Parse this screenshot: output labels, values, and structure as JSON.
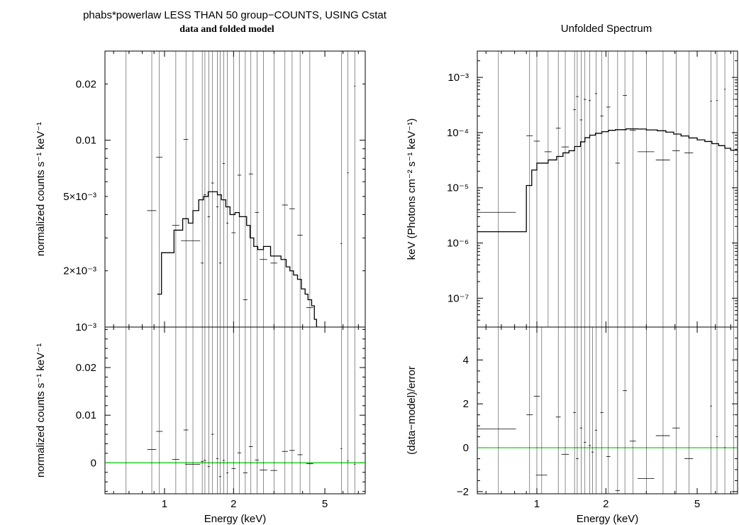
{
  "header": {
    "left_title": "phabs*powerlaw LESS THAN 50 group−COUNTS, USING Cstat",
    "left_subtitle": "data and folded model",
    "right_title": "Unfolded Spectrum"
  },
  "colors": {
    "axis": "#000000",
    "data": "#000000",
    "model": "#000000",
    "zero_line": "#00c800"
  },
  "chart_data": [
    {
      "id": "folded",
      "type": "scatter",
      "title": "data and folded model",
      "xlabel": "",
      "ylabel": "normalized counts s⁻¹ keV⁻¹",
      "xscale": "log",
      "yscale": "log",
      "xlim": [
        0.55,
        7.5
      ],
      "ylim": [
        0.001,
        0.03
      ],
      "yticks": [
        {
          "v": 0.02,
          "label": "0.02"
        },
        {
          "v": 0.01,
          "label": "0.01"
        },
        {
          "v": 0.005,
          "label": "5×10⁻³"
        },
        {
          "v": 0.002,
          "label": "2×10⁻³"
        },
        {
          "v": 0.001,
          "label": "10⁻³"
        }
      ],
      "points": [
        [
          0.68,
          0,
          0,
          0.0009,
          0.0016
        ],
        [
          0.88,
          0.04,
          0.04,
          0.0042,
          0.0042
        ],
        [
          0.95,
          0.03,
          0.03,
          0.0081,
          0.0081
        ],
        [
          1.12,
          0.04,
          0.04,
          0.0035,
          0.0035
        ],
        [
          1.24,
          0.03,
          0.03,
          0.0101,
          0.0101
        ],
        [
          1.33,
          0.15,
          0.1,
          0.0029,
          0.0029
        ],
        [
          1.46,
          0.02,
          0.02,
          0.0022,
          0.003
        ],
        [
          1.5,
          0.02,
          0.02,
          0.0051,
          0.0051
        ],
        [
          1.56,
          0.02,
          0.02,
          0.0039,
          0.0039
        ],
        [
          1.62,
          0.02,
          0.02,
          0.0059,
          0.0059
        ],
        [
          1.7,
          0.02,
          0.02,
          0.0044,
          0.0044
        ],
        [
          1.75,
          0.02,
          0.02,
          0.0022,
          0.0022
        ],
        [
          1.81,
          0.02,
          0.02,
          0.0075,
          0.0075
        ],
        [
          1.88,
          0.02,
          0.02,
          0.0036,
          0.0036
        ],
        [
          2.0,
          0.04,
          0.04,
          0.0032,
          0.0032
        ],
        [
          2.12,
          0.04,
          0.04,
          0.0065,
          0.0065
        ],
        [
          2.25,
          0.05,
          0.05,
          0.0014,
          0.0014
        ],
        [
          2.38,
          0.05,
          0.05,
          0.0066,
          0.0066
        ],
        [
          2.53,
          0.05,
          0.05,
          0.0041,
          0.0041
        ],
        [
          2.7,
          0.1,
          0.1,
          0.0023,
          0.0023
        ],
        [
          3.0,
          0.1,
          0.1,
          0.0022,
          0.0022
        ],
        [
          3.35,
          0.1,
          0.1,
          0.0045,
          0.0045
        ],
        [
          3.6,
          0.1,
          0.1,
          0.0043,
          0.0043
        ],
        [
          3.9,
          0.1,
          0.1,
          0.0031,
          0.0031
        ],
        [
          4.3,
          0.15,
          0.15,
          0.00127,
          0.00127
        ],
        [
          5.9,
          0.05,
          0.05,
          0.0028,
          0.0028
        ],
        [
          6.3,
          0.05,
          0.05,
          0.0067,
          0.0067
        ],
        [
          6.75,
          0.05,
          0.05,
          0.0195,
          0.0195
        ]
      ],
      "model_step": [
        [
          0.93,
          0.0015
        ],
        [
          0.97,
          0.0025
        ],
        [
          1.1,
          0.0033
        ],
        [
          1.2,
          0.0038
        ],
        [
          1.27,
          0.0036
        ],
        [
          1.33,
          0.0042
        ],
        [
          1.41,
          0.0048
        ],
        [
          1.48,
          0.005
        ],
        [
          1.55,
          0.0053
        ],
        [
          1.63,
          0.0053
        ],
        [
          1.7,
          0.0051
        ],
        [
          1.77,
          0.0048
        ],
        [
          1.85,
          0.0044
        ],
        [
          1.93,
          0.004
        ],
        [
          2.03,
          0.0041
        ],
        [
          2.12,
          0.0039
        ],
        [
          2.2,
          0.0039
        ],
        [
          2.28,
          0.0035
        ],
        [
          2.36,
          0.003
        ],
        [
          2.45,
          0.0027
        ],
        [
          2.55,
          0.0026
        ],
        [
          2.7,
          0.0027
        ],
        [
          2.9,
          0.0024
        ],
        [
          3.22,
          0.0023
        ],
        [
          3.39,
          0.0021
        ],
        [
          3.52,
          0.002
        ],
        [
          3.65,
          0.0019
        ],
        [
          3.8,
          0.0018
        ],
        [
          3.95,
          0.0016
        ],
        [
          4.1,
          0.0015
        ],
        [
          4.22,
          0.0014
        ],
        [
          4.38,
          0.0013
        ],
        [
          4.5,
          0.0011
        ],
        [
          4.6,
          0.001
        ]
      ]
    },
    {
      "id": "unfolded",
      "type": "scatter",
      "title": "Unfolded Spectrum",
      "xlabel": "",
      "ylabel": "keV (Photons cm⁻² s⁻¹ keV⁻¹)",
      "xscale": "log",
      "yscale": "log",
      "xlim": [
        0.55,
        7.5
      ],
      "ylim": [
        3e-08,
        0.003
      ],
      "yticks": [
        {
          "v": 0.001,
          "label": "10⁻³"
        },
        {
          "v": 0.0001,
          "label": "10⁻⁴"
        },
        {
          "v": 1e-05,
          "label": "10⁻⁵"
        },
        {
          "v": 1e-06,
          "label": "10⁻⁶"
        },
        {
          "v": 1e-07,
          "label": "10⁻⁷"
        }
      ],
      "points": [
        [
          0.68,
          0.13,
          0.13,
          3.6e-06,
          3.6e-06
        ],
        [
          0.93,
          0.03,
          0.03,
          8.8e-05,
          8.8e-05
        ],
        [
          1.0,
          0.03,
          0.03,
          7e-05,
          7e-05
        ],
        [
          1.12,
          0.04,
          0.04,
          4.5e-05,
          4.5e-05
        ],
        [
          1.24,
          0.03,
          0.03,
          0.00012,
          0.00012
        ],
        [
          1.33,
          0.05,
          0.05,
          5.5e-05,
          5.5e-05
        ],
        [
          1.46,
          0.02,
          0.02,
          0.00026,
          0.00026
        ],
        [
          1.5,
          0.02,
          0.02,
          0.00045,
          0.00045
        ],
        [
          1.56,
          0.02,
          0.02,
          0.00017,
          0.00017
        ],
        [
          1.62,
          0.02,
          0.02,
          0.0004,
          0.0004
        ],
        [
          1.7,
          0.02,
          0.02,
          0.00038,
          0.00038
        ],
        [
          1.81,
          0.02,
          0.02,
          0.00051,
          0.00051
        ],
        [
          1.92,
          0.03,
          0.03,
          0.0002,
          0.0002
        ],
        [
          2.05,
          0.04,
          0.04,
          0.00029,
          0.00029
        ],
        [
          2.25,
          0.05,
          0.05,
          2.8e-05,
          2.8e-05
        ],
        [
          2.42,
          0.05,
          0.05,
          0.00047,
          0.00047
        ],
        [
          2.62,
          0.08,
          0.08,
          0.00011,
          0.00011
        ],
        [
          3.0,
          0.25,
          0.25,
          4.5e-05,
          4.5e-05
        ],
        [
          3.55,
          0.25,
          0.25,
          3.2e-05,
          3.2e-05
        ],
        [
          4.05,
          0.15,
          0.15,
          4.7e-05,
          4.7e-05
        ],
        [
          4.6,
          0.2,
          0.2,
          4.3e-05,
          4.3e-05
        ],
        [
          5.75,
          0.05,
          0.05,
          0.00037,
          0.00037
        ],
        [
          6.1,
          0.05,
          0.05,
          0.00038,
          0.00038
        ],
        [
          6.6,
          0.05,
          0.05,
          0.00061,
          0.00061
        ],
        [
          7.2,
          0.05,
          0.05,
          0.0004,
          0.0004
        ]
      ],
      "model_step": [
        [
          0.55,
          1.6e-06
        ],
        [
          0.88,
          1.6e-06
        ],
        [
          0.9,
          1.1e-05
        ],
        [
          0.95,
          2.1e-05
        ],
        [
          1.0,
          2.8e-05
        ],
        [
          1.12,
          3.2e-05
        ],
        [
          1.22,
          3.7e-05
        ],
        [
          1.3,
          4.3e-05
        ],
        [
          1.38,
          4.7e-05
        ],
        [
          1.46,
          5.6e-05
        ],
        [
          1.55,
          6.8e-05
        ],
        [
          1.62,
          8.1e-05
        ],
        [
          1.7,
          9e-05
        ],
        [
          1.8,
          9.7e-05
        ],
        [
          1.92,
          0.000104
        ],
        [
          2.05,
          0.00011
        ],
        [
          2.2,
          0.000113
        ],
        [
          2.45,
          0.000117
        ],
        [
          2.75,
          0.000116
        ],
        [
          3.0,
          0.000112
        ],
        [
          3.35,
          0.000108
        ],
        [
          3.65,
          0.000102
        ],
        [
          3.95,
          9.4e-05
        ],
        [
          4.25,
          8.7e-05
        ],
        [
          4.6,
          8e-05
        ],
        [
          5.0,
          7.4e-05
        ],
        [
          5.4,
          6.9e-05
        ],
        [
          5.8,
          6.3e-05
        ],
        [
          6.2,
          5.8e-05
        ],
        [
          6.6,
          5.2e-05
        ],
        [
          7.0,
          4.8e-05
        ],
        [
          7.5,
          4.6e-05
        ]
      ]
    },
    {
      "id": "residual-counts",
      "type": "scatter",
      "xlabel": "Energy (keV)",
      "ylabel": "normalized counts s⁻¹ keV⁻¹",
      "xscale": "log",
      "yscale": "linear",
      "xlim": [
        0.55,
        7.5
      ],
      "ylim": [
        -0.0065,
        0.0285
      ],
      "yticks": [
        {
          "v": 0.02,
          "label": "0.02"
        },
        {
          "v": 0.01,
          "label": "0.01"
        },
        {
          "v": 0,
          "label": "0"
        }
      ],
      "xticks": [
        {
          "v": 1,
          "label": "1"
        },
        {
          "v": 2,
          "label": "2"
        },
        {
          "v": 5,
          "label": "5"
        }
      ],
      "points": [
        [
          0.68,
          0,
          0,
          0.0009,
          0.0012
        ],
        [
          0.88,
          0.04,
          0.04,
          0.0028,
          0.004
        ],
        [
          0.95,
          0.03,
          0.03,
          0.0066,
          0.0066
        ],
        [
          1.12,
          0.04,
          0.04,
          0.0007,
          0.0003
        ],
        [
          1.24,
          0.03,
          0.03,
          0.0069,
          0.0069
        ],
        [
          1.33,
          0.1,
          0.1,
          -0.0003,
          -0.0003
        ],
        [
          1.46,
          0.02,
          0.02,
          0.0003,
          0.0003
        ],
        [
          1.5,
          0.02,
          0.02,
          0.0005,
          0.0005
        ],
        [
          1.56,
          0.02,
          0.02,
          -0.0008,
          -0.0008
        ],
        [
          1.62,
          0.02,
          0.02,
          0.006,
          0.006
        ],
        [
          1.7,
          0.02,
          0.02,
          0.0009,
          0.0009
        ],
        [
          1.75,
          0.02,
          0.02,
          -0.0029,
          -0.0029
        ],
        [
          1.81,
          0.02,
          0.02,
          0.0005,
          0.0005
        ],
        [
          1.88,
          0.02,
          0.02,
          -0.0021,
          -0.0021
        ],
        [
          2.0,
          0.04,
          0.04,
          -0.0012,
          -0.0012
        ],
        [
          2.12,
          0.04,
          0.04,
          0.0021,
          0.0021
        ],
        [
          2.25,
          0.05,
          0.05,
          -0.0021,
          -0.0021
        ],
        [
          2.38,
          0.05,
          0.05,
          0.0034,
          0.0034
        ],
        [
          2.53,
          0.05,
          0.05,
          0.0006,
          0.0006
        ],
        [
          2.7,
          0.1,
          0.1,
          -0.0015,
          -0.0015
        ],
        [
          3.0,
          0.1,
          0.1,
          -0.0016,
          -0.0016
        ],
        [
          3.35,
          0.1,
          0.1,
          0.0024,
          0.0024
        ],
        [
          3.6,
          0.1,
          0.1,
          0.0026,
          0.0026
        ],
        [
          3.9,
          0.1,
          0.1,
          0.0017,
          0.0017
        ],
        [
          4.3,
          0.15,
          0.15,
          -0.0002,
          -0.0002
        ],
        [
          5.9,
          0.05,
          0.05,
          0.003,
          0.003
        ],
        [
          6.3,
          0.05,
          0.05,
          0.0004,
          0.0004
        ],
        [
          6.75,
          0.05,
          0.05,
          -0.0003,
          -0.0003
        ]
      ],
      "zero_line": 0
    },
    {
      "id": "residual-sigma",
      "type": "scatter",
      "xlabel": "Energy (keV)",
      "ylabel": "(data−model)/error",
      "xscale": "log",
      "yscale": "linear",
      "xlim": [
        0.55,
        7.5
      ],
      "ylim": [
        -2.1,
        5.5
      ],
      "yticks": [
        {
          "v": 4,
          "label": "4"
        },
        {
          "v": 2,
          "label": "2"
        },
        {
          "v": 0,
          "label": "0"
        },
        {
          "v": -2,
          "label": "−2"
        }
      ],
      "xticks": [
        {
          "v": 1,
          "label": "1"
        },
        {
          "v": 2,
          "label": "2"
        },
        {
          "v": 5,
          "label": "5"
        }
      ],
      "points": [
        [
          0.68,
          0.13,
          0.13,
          0.85,
          0.85
        ],
        [
          0.93,
          0.03,
          0.03,
          1.5,
          1.5
        ],
        [
          1.0,
          0.03,
          0.03,
          2.35,
          2.35
        ],
        [
          1.05,
          0.06,
          0.06,
          -1.25,
          -1.25
        ],
        [
          1.24,
          0.03,
          0.03,
          1.4,
          1.4
        ],
        [
          1.33,
          0.05,
          0.05,
          -0.3,
          -0.3
        ],
        [
          1.46,
          0.02,
          0.02,
          1.6,
          1.6
        ],
        [
          1.5,
          0.02,
          0.02,
          -0.5,
          -0.5
        ],
        [
          1.56,
          0.02,
          0.02,
          0.9,
          0.9
        ],
        [
          1.62,
          0.02,
          0.02,
          0.25,
          0.25
        ],
        [
          1.7,
          0.02,
          0.02,
          0.1,
          0.1
        ],
        [
          1.75,
          0.02,
          0.02,
          -0.2,
          -0.2
        ],
        [
          1.81,
          0.02,
          0.02,
          0.8,
          0.8
        ],
        [
          1.92,
          0.03,
          0.03,
          1.6,
          1.6
        ],
        [
          2.05,
          0.04,
          0.04,
          -0.4,
          -0.4
        ],
        [
          2.25,
          0.05,
          0.05,
          -1.95,
          -1.95
        ],
        [
          2.42,
          0.05,
          0.05,
          2.6,
          2.6
        ],
        [
          2.62,
          0.08,
          0.08,
          0.3,
          0.3
        ],
        [
          3.0,
          0.25,
          0.25,
          -1.4,
          -1.4
        ],
        [
          3.55,
          0.25,
          0.25,
          0.55,
          0.55
        ],
        [
          4.05,
          0.15,
          0.15,
          0.9,
          0.9
        ],
        [
          4.6,
          0.2,
          0.2,
          -0.5,
          -0.5
        ],
        [
          5.75,
          0.05,
          0.05,
          1.9,
          1.9
        ],
        [
          6.1,
          0.05,
          0.05,
          0.5,
          0.5
        ],
        [
          6.6,
          0.05,
          0.05,
          0.0,
          0.0
        ],
        [
          7.2,
          0.05,
          0.05,
          1.5,
          1.5
        ]
      ],
      "zero_line": 0
    }
  ]
}
